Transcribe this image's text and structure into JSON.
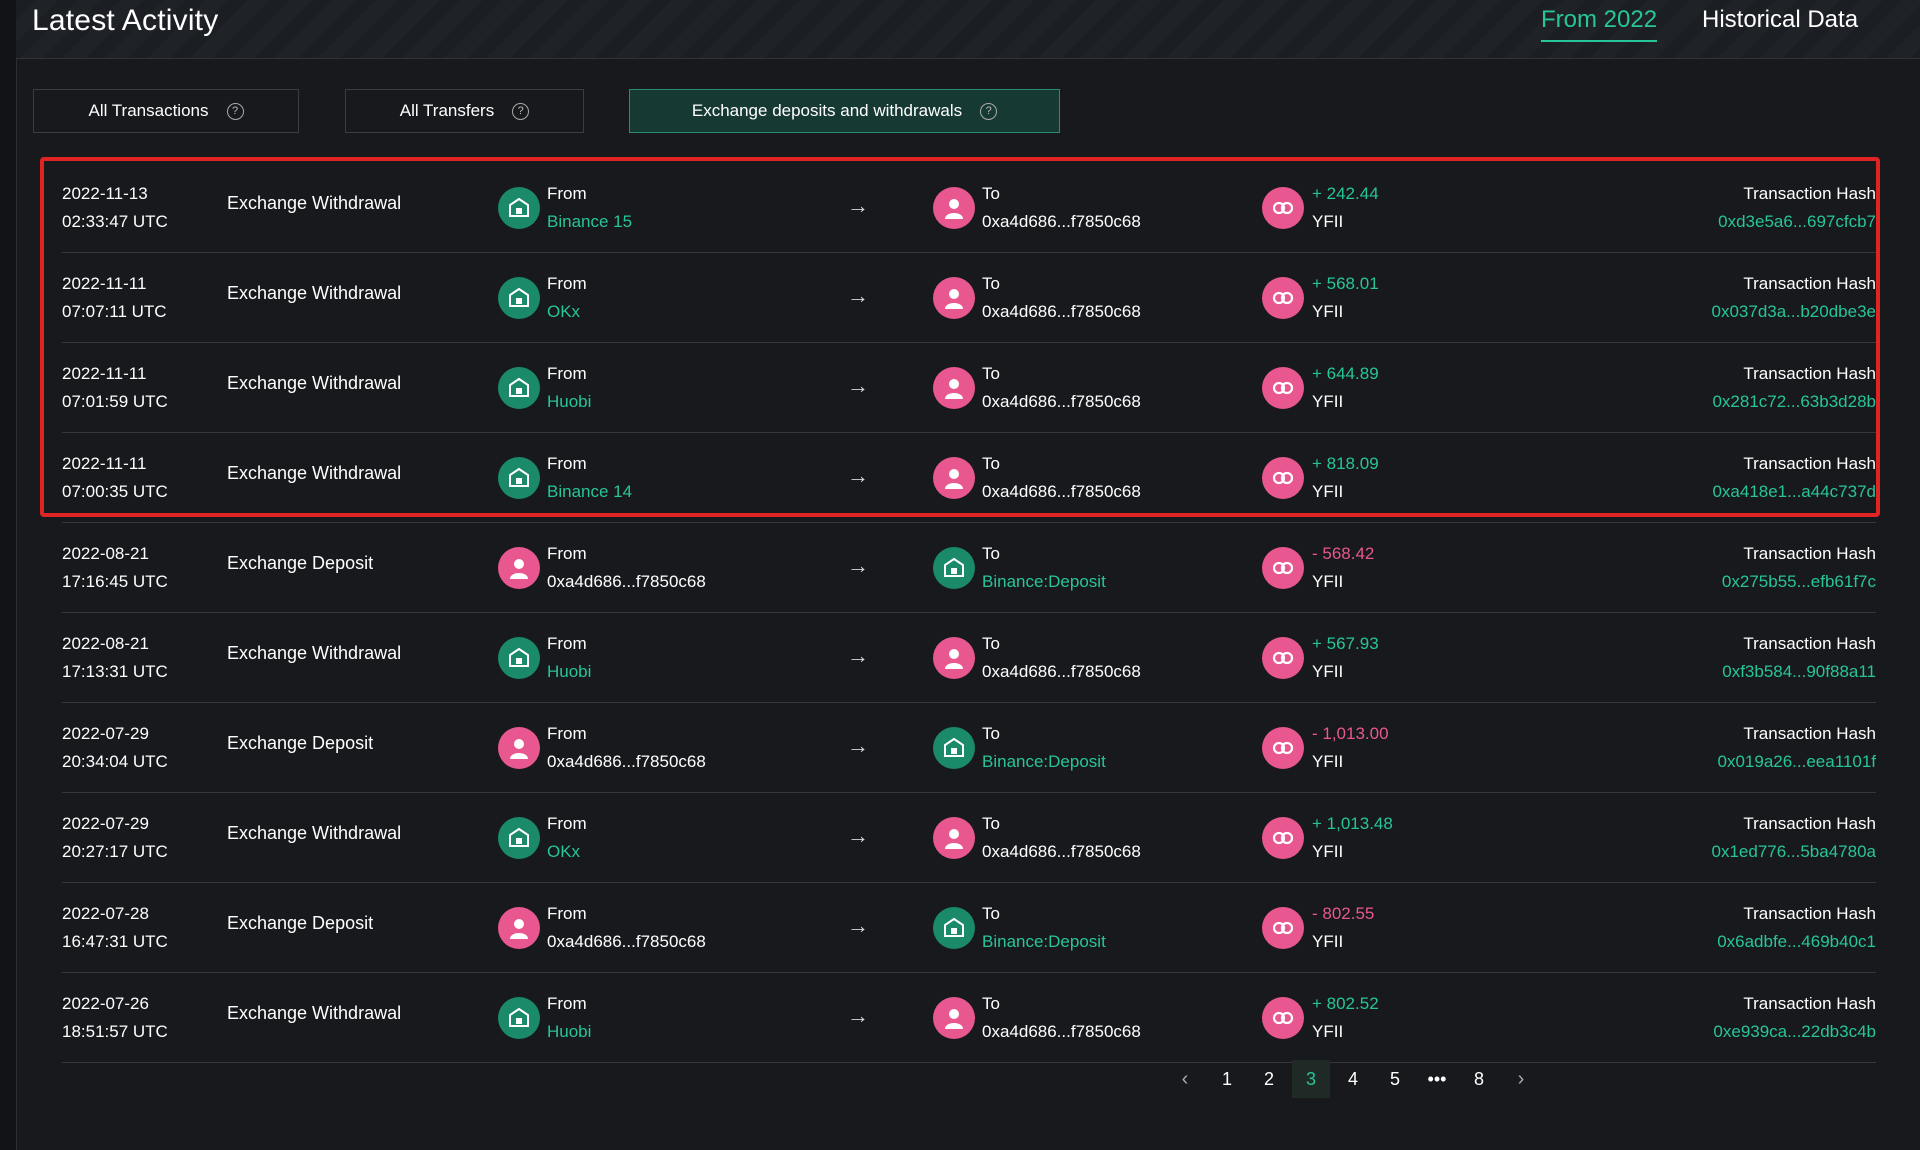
{
  "header": {
    "title": "Latest Activity",
    "tabs": [
      {
        "label": "From 2022"
      },
      {
        "label": "Historical Data"
      }
    ]
  },
  "filters": [
    {
      "label": "All Transactions"
    },
    {
      "label": "All Transfers"
    },
    {
      "label": "Exchange deposits and withdrawals"
    }
  ],
  "help_glyph": "?",
  "rows": [
    {
      "date": "2022-11-13",
      "time": "02:33:47 UTC",
      "type": "Exchange Withdrawal",
      "from_label": "From",
      "from": "Binance 15",
      "to_label": "To",
      "to": "0xa4d686...f7850c68",
      "amount": "+ 242.44",
      "symbol": "YFII",
      "hash_label": "Transaction Hash",
      "hash": "0xd3e5a6...697cfcb7"
    },
    {
      "date": "2022-11-11",
      "time": "07:07:11 UTC",
      "type": "Exchange Withdrawal",
      "from_label": "From",
      "from": "OKx",
      "to_label": "To",
      "to": "0xa4d686...f7850c68",
      "amount": "+ 568.01",
      "symbol": "YFII",
      "hash_label": "Transaction Hash",
      "hash": "0x037d3a...b20dbe3e"
    },
    {
      "date": "2022-11-11",
      "time": "07:01:59 UTC",
      "type": "Exchange Withdrawal",
      "from_label": "From",
      "from": "Huobi",
      "to_label": "To",
      "to": "0xa4d686...f7850c68",
      "amount": "+ 644.89",
      "symbol": "YFII",
      "hash_label": "Transaction Hash",
      "hash": "0x281c72...63b3d28b"
    },
    {
      "date": "2022-11-11",
      "time": "07:00:35 UTC",
      "type": "Exchange Withdrawal",
      "from_label": "From",
      "from": "Binance 14",
      "to_label": "To",
      "to": "0xa4d686...f7850c68",
      "amount": "+ 818.09",
      "symbol": "YFII",
      "hash_label": "Transaction Hash",
      "hash": "0xa418e1...a44c737d"
    },
    {
      "date": "2022-08-21",
      "time": "17:16:45 UTC",
      "type": "Exchange Deposit",
      "from_label": "From",
      "from": "0xa4d686...f7850c68",
      "to_label": "To",
      "to": "Binance:Deposit",
      "amount": "- 568.42",
      "symbol": "YFII",
      "hash_label": "Transaction Hash",
      "hash": "0x275b55...efb61f7c"
    },
    {
      "date": "2022-08-21",
      "time": "17:13:31 UTC",
      "type": "Exchange Withdrawal",
      "from_label": "From",
      "from": "Huobi",
      "to_label": "To",
      "to": "0xa4d686...f7850c68",
      "amount": "+ 567.93",
      "symbol": "YFII",
      "hash_label": "Transaction Hash",
      "hash": "0xf3b584...90f88a11"
    },
    {
      "date": "2022-07-29",
      "time": "20:34:04 UTC",
      "type": "Exchange Deposit",
      "from_label": "From",
      "from": "0xa4d686...f7850c68",
      "to_label": "To",
      "to": "Binance:Deposit",
      "amount": "- 1,013.00",
      "symbol": "YFII",
      "hash_label": "Transaction Hash",
      "hash": "0x019a26...eea1101f"
    },
    {
      "date": "2022-07-29",
      "time": "20:27:17 UTC",
      "type": "Exchange Withdrawal",
      "from_label": "From",
      "from": "OKx",
      "to_label": "To",
      "to": "0xa4d686...f7850c68",
      "amount": "+ 1,013.48",
      "symbol": "YFII",
      "hash_label": "Transaction Hash",
      "hash": "0x1ed776...5ba4780a"
    },
    {
      "date": "2022-07-28",
      "time": "16:47:31 UTC",
      "type": "Exchange Deposit",
      "from_label": "From",
      "from": "0xa4d686...f7850c68",
      "to_label": "To",
      "to": "Binance:Deposit",
      "amount": "- 802.55",
      "symbol": "YFII",
      "hash_label": "Transaction Hash",
      "hash": "0x6adbfe...469b40c1"
    },
    {
      "date": "2022-07-26",
      "time": "18:51:57 UTC",
      "type": "Exchange Withdrawal",
      "from_label": "From",
      "from": "Huobi",
      "to_label": "To",
      "to": "0xa4d686...f7850c68",
      "amount": "+ 802.52",
      "symbol": "YFII",
      "hash_label": "Transaction Hash",
      "hash": "0xe939ca...22db3c4b"
    }
  ],
  "pagination": {
    "prev": "‹",
    "pages": [
      "1",
      "2",
      "3",
      "4",
      "5",
      "•••",
      "8"
    ],
    "next": "›"
  },
  "colors": {
    "accent": "#27c59a",
    "negative": "#e8578f",
    "highlight": "#e02424"
  }
}
